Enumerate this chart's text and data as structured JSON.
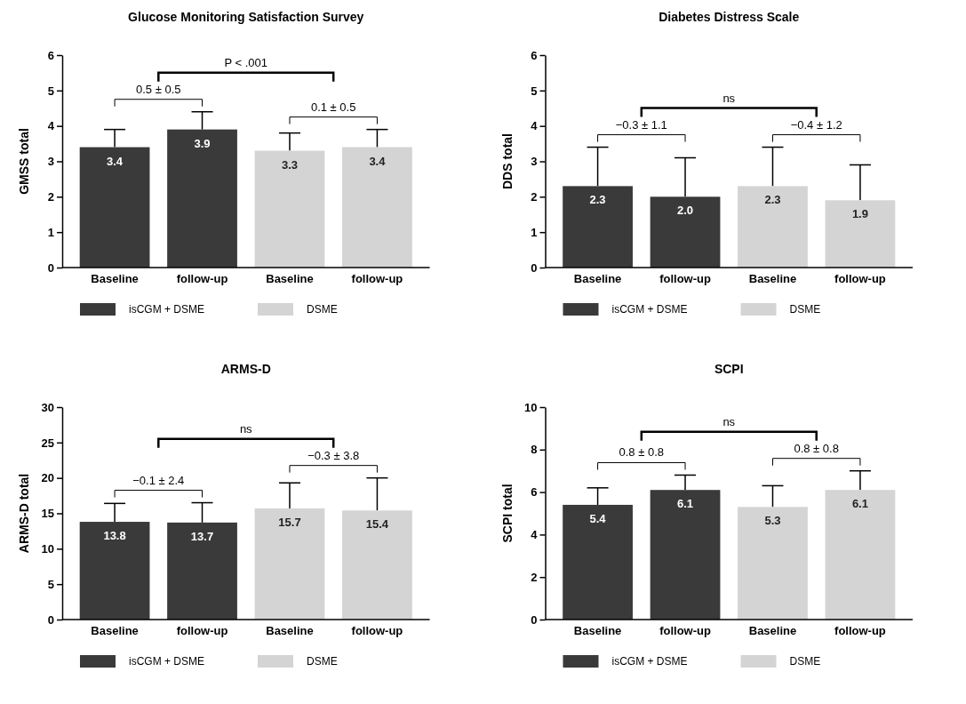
{
  "chart_data": [
    {
      "type": "bar",
      "title": "Glucose Monitoring Satisfaction Survey",
      "ylabel": "GMSS total",
      "categories": [
        "Baseline",
        "follow-up",
        "Baseline",
        "follow-up"
      ],
      "ylim": [
        0,
        6
      ],
      "yticks": [
        0,
        1,
        2,
        3,
        4,
        5,
        6
      ],
      "legend": "bottom",
      "annotations": [
        "0.5 ± 0.5",
        "0.1 ± 0.5",
        "P < .001"
      ],
      "series": [
        {
          "name": "isCGM + DSME",
          "color": "#3a3a3a",
          "values": [
            3.4,
            3.9,
            null,
            null
          ],
          "errors": [
            [
              3.4,
              3.9
            ],
            [
              3.9,
              4.4
            ],
            null,
            null
          ],
          "value_labels": [
            "3.4",
            "3.9",
            null,
            null
          ]
        },
        {
          "name": "DSME",
          "color": "#d4d4d4",
          "values": [
            null,
            null,
            3.3,
            3.4
          ],
          "errors": [
            null,
            null,
            [
              3.3,
              3.8
            ],
            [
              3.4,
              3.9
            ]
          ],
          "value_labels": [
            null,
            null,
            "3.3",
            "3.4"
          ]
        }
      ]
    },
    {
      "type": "bar",
      "title": "Diabetes Distress Scale",
      "ylabel": "DDS total",
      "categories": [
        "Baseline",
        "follow-up",
        "Baseline",
        "follow-up"
      ],
      "ylim": [
        0,
        6
      ],
      "yticks": [
        0,
        1,
        2,
        3,
        4,
        5,
        6
      ],
      "legend": "bottom",
      "annotations": [
        "−0.3 ± 1.1",
        "−0.4 ± 1.2",
        "ns"
      ],
      "series": [
        {
          "name": "isCGM + DSME",
          "color": "#3a3a3a",
          "values": [
            2.3,
            2.0,
            null,
            null
          ],
          "errors": [
            [
              2.3,
              3.4
            ],
            [
              2.0,
              3.1
            ],
            null,
            null
          ],
          "value_labels": [
            "2.3",
            "2.0",
            null,
            null
          ]
        },
        {
          "name": "DSME",
          "color": "#d4d4d4",
          "values": [
            null,
            null,
            2.3,
            1.9
          ],
          "errors": [
            null,
            null,
            [
              2.3,
              3.4
            ],
            [
              1.9,
              2.9
            ]
          ],
          "value_labels": [
            null,
            null,
            "2.3",
            "1.9"
          ]
        }
      ]
    },
    {
      "type": "bar",
      "title": "ARMS-D",
      "ylabel": "ARMS-D total",
      "categories": [
        "Baseline",
        "follow-up",
        "Baseline",
        "follow-up"
      ],
      "ylim": [
        0,
        30
      ],
      "yticks": [
        0,
        5,
        10,
        15,
        20,
        25,
        30
      ],
      "legend": "bottom",
      "annotations": [
        "−0.1 ± 2.4",
        "−0.3 ± 3.8",
        "ns"
      ],
      "series": [
        {
          "name": "isCGM + DSME",
          "color": "#3a3a3a",
          "values": [
            13.8,
            13.7,
            null,
            null
          ],
          "errors": [
            [
              13.8,
              16.4
            ],
            [
              13.7,
              16.5
            ],
            null,
            null
          ],
          "value_labels": [
            "13.8",
            "13.7",
            null,
            null
          ]
        },
        {
          "name": "DSME",
          "color": "#d4d4d4",
          "values": [
            null,
            null,
            15.7,
            15.4
          ],
          "errors": [
            null,
            null,
            [
              15.7,
              19.3
            ],
            [
              15.4,
              20.0
            ]
          ],
          "value_labels": [
            null,
            null,
            "15.7",
            "15.4"
          ]
        }
      ]
    },
    {
      "type": "bar",
      "title": "SCPI",
      "ylabel": "SCPI total",
      "categories": [
        "Baseline",
        "follow-up",
        "Baseline",
        "follow-up"
      ],
      "ylim": [
        0,
        10
      ],
      "yticks": [
        0,
        2,
        4,
        6,
        8,
        10
      ],
      "legend": "bottom",
      "annotations": [
        "0.8 ± 0.8",
        "0.8 ± 0.8",
        "ns"
      ],
      "series": [
        {
          "name": "isCGM + DSME",
          "color": "#3a3a3a",
          "values": [
            5.4,
            6.1,
            null,
            null
          ],
          "errors": [
            [
              5.4,
              6.2
            ],
            [
              6.1,
              6.8
            ],
            null,
            null
          ],
          "value_labels": [
            "5.4",
            "6.1",
            null,
            null
          ]
        },
        {
          "name": "DSME",
          "color": "#d4d4d4",
          "values": [
            null,
            null,
            5.3,
            6.1
          ],
          "errors": [
            null,
            null,
            [
              5.3,
              6.3
            ],
            [
              6.1,
              7.0
            ]
          ],
          "value_labels": [
            null,
            null,
            "5.3",
            "6.1"
          ]
        }
      ]
    }
  ]
}
